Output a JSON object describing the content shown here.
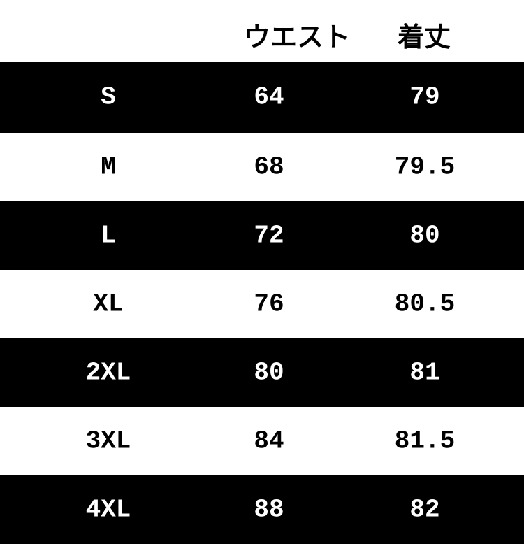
{
  "headers": [
    "",
    "ウエスト",
    "着丈"
  ],
  "rows": [
    {
      "size": "S",
      "waist": "64",
      "length": "79"
    },
    {
      "size": "M",
      "waist": "68",
      "length": "79.5"
    },
    {
      "size": "L",
      "waist": "72",
      "length": "80"
    },
    {
      "size": "XL",
      "waist": "76",
      "length": "80.5"
    },
    {
      "size": "2XL",
      "waist": "80",
      "length": "81"
    },
    {
      "size": "3XL",
      "waist": "84",
      "length": "81.5"
    },
    {
      "size": "4XL",
      "waist": "88",
      "length": "82"
    }
  ],
  "colors": {
    "dark_row": "#000000",
    "light_row": "#ffffff"
  }
}
